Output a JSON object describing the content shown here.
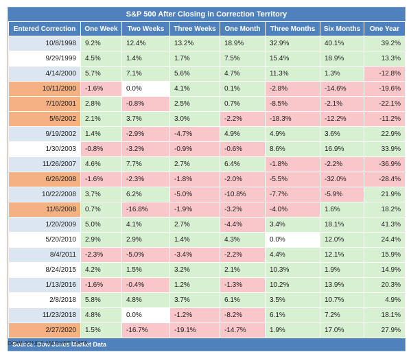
{
  "table": {
    "title": "S&P 500 After Closing in Correction Territory",
    "headers": [
      "Entered Correction",
      "One Week",
      "Two Weeks",
      "Three Weeks",
      "One Month",
      "Three Months",
      "Six Months",
      "One Year"
    ],
    "rows": [
      {
        "date": "10/8/1998",
        "date_color": "#dce6f1",
        "values": [
          "9.2%",
          "12.4%",
          "13.2%",
          "18.9%",
          "32.9%",
          "40.1%",
          "39.2%"
        ]
      },
      {
        "date": "9/29/1999",
        "date_color": "#ffffff",
        "values": [
          "4.5%",
          "1.4%",
          "1.7%",
          "7.5%",
          "15.4%",
          "18.9%",
          "13.3%"
        ]
      },
      {
        "date": "4/14/2000",
        "date_color": "#dce6f1",
        "values": [
          "5.7%",
          "7.1%",
          "5.6%",
          "4.7%",
          "11.3%",
          "1.3%",
          "-12.8%"
        ]
      },
      {
        "date": "10/11/2000",
        "date_color": "#f4b183",
        "values": [
          "-1.6%",
          "0.0%",
          "4.1%",
          "0.1%",
          "-2.8%",
          "-14.6%",
          "-19.6%"
        ]
      },
      {
        "date": "7/10/2001",
        "date_color": "#f4b183",
        "values": [
          "2.8%",
          "-0.8%",
          "2.5%",
          "0.7%",
          "-8.5%",
          "-2.1%",
          "-22.1%"
        ]
      },
      {
        "date": "5/6/2002",
        "date_color": "#f4b183",
        "values": [
          "2.1%",
          "3.7%",
          "3.0%",
          "-2.2%",
          "-18.3%",
          "-12.2%",
          "-11.2%"
        ]
      },
      {
        "date": "9/19/2002",
        "date_color": "#dce6f1",
        "values": [
          "1.4%",
          "-2.9%",
          "-4.7%",
          "4.9%",
          "4.9%",
          "3.6%",
          "22.9%"
        ]
      },
      {
        "date": "1/30/2003",
        "date_color": "#ffffff",
        "values": [
          "-0.8%",
          "-3.2%",
          "-0.9%",
          "-0.6%",
          "8.6%",
          "16.9%",
          "33.9%"
        ]
      },
      {
        "date": "11/26/2007",
        "date_color": "#dce6f1",
        "values": [
          "4.6%",
          "7.7%",
          "2.7%",
          "6.4%",
          "-1.8%",
          "-2.2%",
          "-36.9%"
        ]
      },
      {
        "date": "6/26/2008",
        "date_color": "#f4b183",
        "values": [
          "-1.6%",
          "-2.3%",
          "-1.8%",
          "-2.0%",
          "-5.5%",
          "-32.0%",
          "-28.4%"
        ]
      },
      {
        "date": "10/22/2008",
        "date_color": "#dce6f1",
        "values": [
          "3.7%",
          "6.2%",
          "-5.0%",
          "-10.8%",
          "-7.7%",
          "-5.9%",
          "21.9%"
        ]
      },
      {
        "date": "11/6/2008",
        "date_color": "#f4b183",
        "values": [
          "0.7%",
          "-16.8%",
          "-1.9%",
          "-3.2%",
          "-4.0%",
          "1.6%",
          "18.2%"
        ]
      },
      {
        "date": "1/20/2009",
        "date_color": "#dce6f1",
        "values": [
          "5.0%",
          "4.1%",
          "2.7%",
          "-4.4%",
          "3.4%",
          "18.1%",
          "41.3%"
        ]
      },
      {
        "date": "5/20/2010",
        "date_color": "#ffffff",
        "values": [
          "2.9%",
          "2.9%",
          "1.4%",
          "4.3%",
          "0.0%",
          "12.0%",
          "24.4%"
        ]
      },
      {
        "date": "8/4/2011",
        "date_color": "#dce6f1",
        "values": [
          "-2.3%",
          "-5.0%",
          "-3.4%",
          "-2.2%",
          "4.4%",
          "12.1%",
          "15.9%"
        ]
      },
      {
        "date": "8/24/2015",
        "date_color": "#ffffff",
        "values": [
          "4.2%",
          "1.5%",
          "3.2%",
          "2.1%",
          "10.3%",
          "1.9%",
          "14.9%"
        ]
      },
      {
        "date": "1/13/2016",
        "date_color": "#dce6f1",
        "values": [
          "-1.6%",
          "-0.4%",
          "1.2%",
          "-1.3%",
          "10.2%",
          "13.9%",
          "20.3%"
        ]
      },
      {
        "date": "2/8/2018",
        "date_color": "#ffffff",
        "values": [
          "5.8%",
          "4.8%",
          "3.7%",
          "6.1%",
          "3.5%",
          "10.7%",
          "4.9%"
        ]
      },
      {
        "date": "11/23/2018",
        "date_color": "#dce6f1",
        "values": [
          "4.8%",
          "0.0%",
          "-1.2%",
          "-8.2%",
          "6.1%",
          "7.2%",
          "18.1%"
        ]
      },
      {
        "date": "2/27/2020",
        "date_color": "#f4b183",
        "values": [
          "1.5%",
          "-16.7%",
          "-19.1%",
          "-14.7%",
          "1.9%",
          "17.0%",
          "27.9%"
        ]
      }
    ],
    "source": "Source: Dow Jones Market Data"
  },
  "footer": "DOW JONES MARKET DATA",
  "colors": {
    "header_blue": "#4f81bd",
    "positive_green": "#d8f0d2",
    "negative_red": "#f9c6c9",
    "zero_white": "#ffffff",
    "date_light_blue": "#dce6f1",
    "date_orange": "#f4b183"
  }
}
